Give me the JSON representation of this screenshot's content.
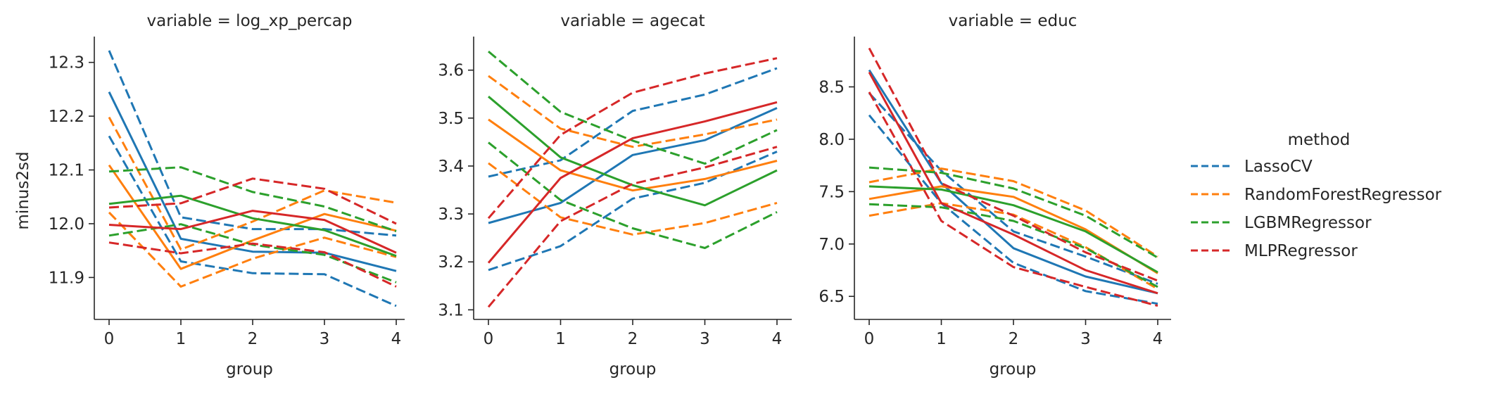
{
  "figure": {
    "ylabel": "minus2sd",
    "legend_title": "method",
    "legend_placement": "right"
  },
  "colors": {
    "LassoCV": "#1f77b4",
    "RandomForestRegressor": "#ff7f0e",
    "LGBMRegressor": "#2ca02c",
    "MLPRegressor": "#d62728"
  },
  "chart_data": [
    {
      "type": "line",
      "title": "variable = log_xp_percap",
      "xlabel": "group",
      "ylabel": "minus2sd",
      "x": [
        0,
        1,
        2,
        3,
        4
      ],
      "xticks": [
        "0",
        "1",
        "2",
        "3",
        "4"
      ],
      "ylim": [
        11.822,
        12.348
      ],
      "yticks": [
        11.9,
        12.0,
        12.1,
        12.2,
        12.3
      ],
      "grid": false,
      "series": [
        {
          "method": "LassoCV",
          "style": "solid",
          "values": [
            12.245,
            11.972,
            11.948,
            11.946,
            11.912
          ]
        },
        {
          "method": "LassoCV",
          "style": "dashed",
          "values": [
            12.322,
            12.012,
            11.99,
            11.99,
            11.978
          ]
        },
        {
          "method": "LassoCV",
          "style": "dashed",
          "values": [
            12.163,
            11.93,
            11.908,
            11.906,
            11.847
          ]
        },
        {
          "method": "RandomForestRegressor",
          "style": "solid",
          "values": [
            12.109,
            11.916,
            11.969,
            12.018,
            11.987
          ]
        },
        {
          "method": "RandomForestRegressor",
          "style": "dashed",
          "values": [
            12.198,
            11.952,
            12.004,
            12.062,
            12.039
          ]
        },
        {
          "method": "RandomForestRegressor",
          "style": "dashed",
          "values": [
            12.021,
            11.883,
            11.935,
            11.974,
            11.938
          ]
        },
        {
          "method": "LGBMRegressor",
          "style": "solid",
          "values": [
            12.037,
            12.052,
            12.01,
            11.988,
            11.94
          ]
        },
        {
          "method": "LGBMRegressor",
          "style": "dashed",
          "values": [
            12.097,
            12.105,
            12.059,
            12.032,
            11.986
          ]
        },
        {
          "method": "LGBMRegressor",
          "style": "dashed",
          "values": [
            11.978,
            11.999,
            11.961,
            11.942,
            11.891
          ]
        },
        {
          "method": "MLPRegressor",
          "style": "solid",
          "values": [
            11.998,
            11.99,
            12.024,
            12.007,
            11.946
          ]
        },
        {
          "method": "MLPRegressor",
          "style": "dashed",
          "values": [
            12.03,
            12.038,
            12.084,
            12.065,
            12.0
          ]
        },
        {
          "method": "MLPRegressor",
          "style": "dashed",
          "values": [
            11.965,
            11.945,
            11.963,
            11.947,
            11.883
          ]
        }
      ]
    },
    {
      "type": "line",
      "title": "variable = agecat",
      "xlabel": "group",
      "ylabel": "",
      "x": [
        0,
        1,
        2,
        3,
        4
      ],
      "xticks": [
        "0",
        "1",
        "2",
        "3",
        "4"
      ],
      "ylim": [
        3.08,
        3.67
      ],
      "yticks": [
        3.1,
        3.2,
        3.3,
        3.4,
        3.5,
        3.6
      ],
      "grid": false,
      "series": [
        {
          "method": "LassoCV",
          "style": "solid",
          "values": [
            3.281,
            3.323,
            3.423,
            3.454,
            3.521
          ]
        },
        {
          "method": "LassoCV",
          "style": "dashed",
          "values": [
            3.378,
            3.412,
            3.515,
            3.549,
            3.604
          ]
        },
        {
          "method": "LassoCV",
          "style": "dashed",
          "values": [
            3.183,
            3.233,
            3.332,
            3.365,
            3.43
          ]
        },
        {
          "method": "RandomForestRegressor",
          "style": "solid",
          "values": [
            3.497,
            3.391,
            3.349,
            3.373,
            3.411
          ]
        },
        {
          "method": "RandomForestRegressor",
          "style": "dashed",
          "values": [
            3.588,
            3.478,
            3.44,
            3.466,
            3.497
          ]
        },
        {
          "method": "RandomForestRegressor",
          "style": "dashed",
          "values": [
            3.406,
            3.293,
            3.257,
            3.281,
            3.323
          ]
        },
        {
          "method": "LGBMRegressor",
          "style": "solid",
          "values": [
            3.545,
            3.418,
            3.36,
            3.318,
            3.391
          ]
        },
        {
          "method": "LGBMRegressor",
          "style": "dashed",
          "values": [
            3.639,
            3.513,
            3.453,
            3.405,
            3.475
          ]
        },
        {
          "method": "LGBMRegressor",
          "style": "dashed",
          "values": [
            3.449,
            3.329,
            3.27,
            3.229,
            3.304
          ]
        },
        {
          "method": "MLPRegressor",
          "style": "solid",
          "values": [
            3.198,
            3.375,
            3.458,
            3.493,
            3.533
          ]
        },
        {
          "method": "MLPRegressor",
          "style": "dashed",
          "values": [
            3.291,
            3.465,
            3.553,
            3.593,
            3.625
          ]
        },
        {
          "method": "MLPRegressor",
          "style": "dashed",
          "values": [
            3.106,
            3.285,
            3.363,
            3.397,
            3.44
          ]
        }
      ]
    },
    {
      "type": "line",
      "title": "variable = educ",
      "xlabel": "group",
      "ylabel": "",
      "x": [
        0,
        1,
        2,
        3,
        4
      ],
      "xticks": [
        "0",
        "1",
        "2",
        "3",
        "4"
      ],
      "ylim": [
        6.28,
        8.98
      ],
      "yticks": [
        6.5,
        7.0,
        7.5,
        8.0,
        8.5
      ],
      "grid": false,
      "series": [
        {
          "method": "LassoCV",
          "style": "solid",
          "values": [
            8.66,
            7.58,
            6.96,
            6.69,
            6.53
          ]
        },
        {
          "method": "LassoCV",
          "style": "dashed",
          "values": [
            8.44,
            7.7,
            7.12,
            6.88,
            6.62
          ]
        },
        {
          "method": "LassoCV",
          "style": "dashed",
          "values": [
            8.23,
            7.39,
            6.82,
            6.55,
            6.43
          ]
        },
        {
          "method": "RandomForestRegressor",
          "style": "solid",
          "values": [
            7.43,
            7.55,
            7.45,
            7.14,
            6.72
          ]
        },
        {
          "method": "RandomForestRegressor",
          "style": "dashed",
          "values": [
            7.59,
            7.72,
            7.6,
            7.32,
            6.88
          ]
        },
        {
          "method": "RandomForestRegressor",
          "style": "dashed",
          "values": [
            7.27,
            7.39,
            7.28,
            6.97,
            6.57
          ]
        },
        {
          "method": "LGBMRegressor",
          "style": "solid",
          "values": [
            7.55,
            7.52,
            7.37,
            7.12,
            6.73
          ]
        },
        {
          "method": "LGBMRegressor",
          "style": "dashed",
          "values": [
            7.73,
            7.68,
            7.53,
            7.27,
            6.87
          ]
        },
        {
          "method": "LGBMRegressor",
          "style": "dashed",
          "values": [
            7.38,
            7.35,
            7.22,
            6.96,
            6.59
          ]
        },
        {
          "method": "MLPRegressor",
          "style": "solid",
          "values": [
            8.64,
            7.39,
            7.09,
            6.75,
            6.53
          ]
        },
        {
          "method": "MLPRegressor",
          "style": "dashed",
          "values": [
            8.87,
            7.58,
            7.27,
            6.92,
            6.65
          ]
        },
        {
          "method": "MLPRegressor",
          "style": "dashed",
          "values": [
            8.45,
            7.22,
            6.78,
            6.59,
            6.41
          ]
        }
      ]
    }
  ],
  "legend": {
    "title": "method",
    "entries": [
      "LassoCV",
      "RandomForestRegressor",
      "LGBMRegressor",
      "MLPRegressor"
    ]
  }
}
